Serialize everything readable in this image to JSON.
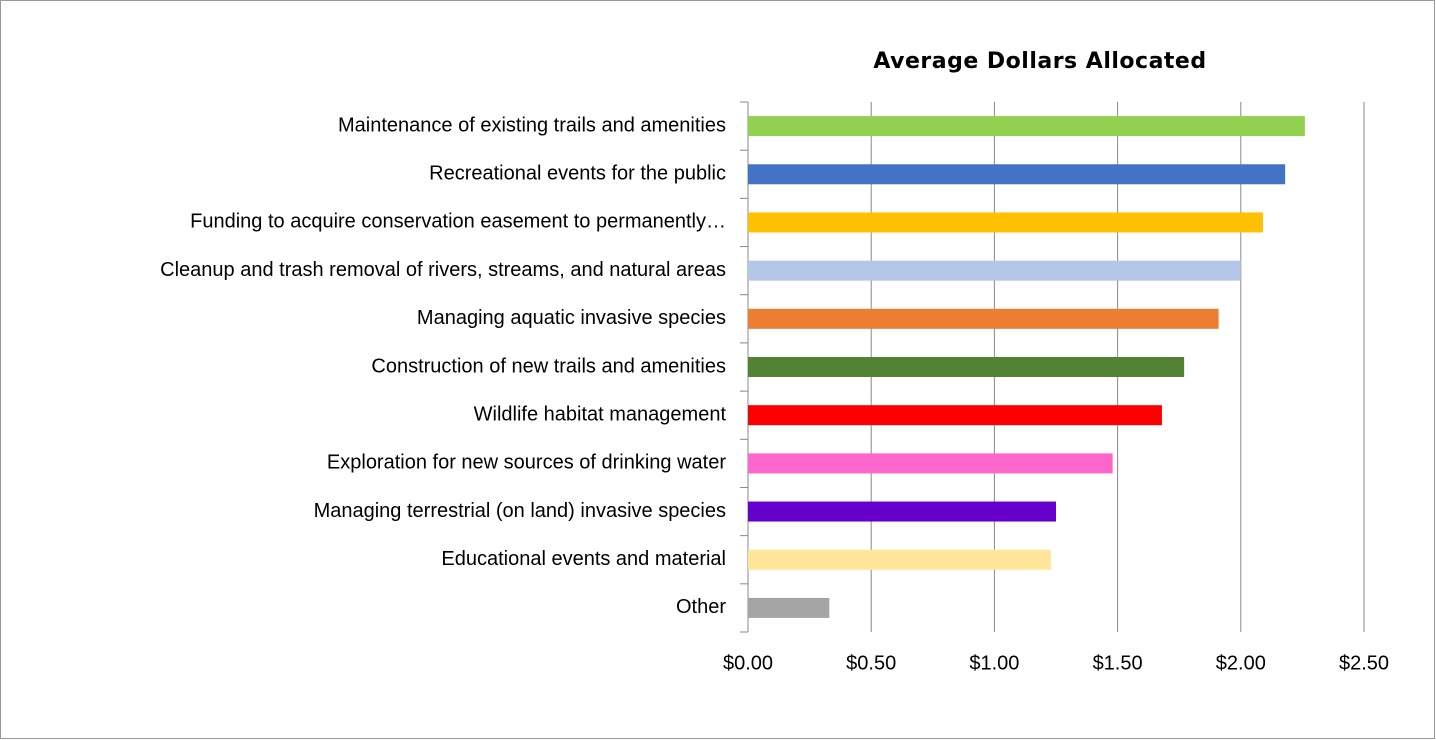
{
  "chart_data": {
    "type": "bar",
    "orientation": "horizontal",
    "title": "Average Dollars Allocated",
    "categories": [
      "Maintenance of existing trails and amenities",
      "Recreational events for the public",
      "Funding to acquire conservation easement to permanently…",
      "Cleanup and trash removal of rivers, streams, and natural areas",
      "Managing aquatic invasive species",
      "Construction of new trails and amenities",
      "Wildlife habitat management",
      "Exploration for new sources of drinking water",
      "Managing terrestrial (on land) invasive species",
      "Educational events and material",
      "Other"
    ],
    "values": [
      2.26,
      2.18,
      2.09,
      2.0,
      1.91,
      1.77,
      1.68,
      1.48,
      1.25,
      1.23,
      0.33
    ],
    "colors": [
      "#92d050",
      "#4472c4",
      "#ffc000",
      "#b4c7e7",
      "#ed7d31",
      "#548235",
      "#ff0000",
      "#ff66cc",
      "#6600cc",
      "#ffe699",
      "#a5a5a5"
    ],
    "xlim": [
      0,
      2.5
    ],
    "xticks": [
      {
        "value": 0,
        "label": "$0.00"
      },
      {
        "value": 0.5,
        "label": "$0.50"
      },
      {
        "value": 1,
        "label": "$1.00"
      },
      {
        "value": 1.5,
        "label": "$1.50"
      },
      {
        "value": 2,
        "label": "$2.00"
      },
      {
        "value": 2.5,
        "label": "$2.50"
      }
    ],
    "grid": true
  }
}
